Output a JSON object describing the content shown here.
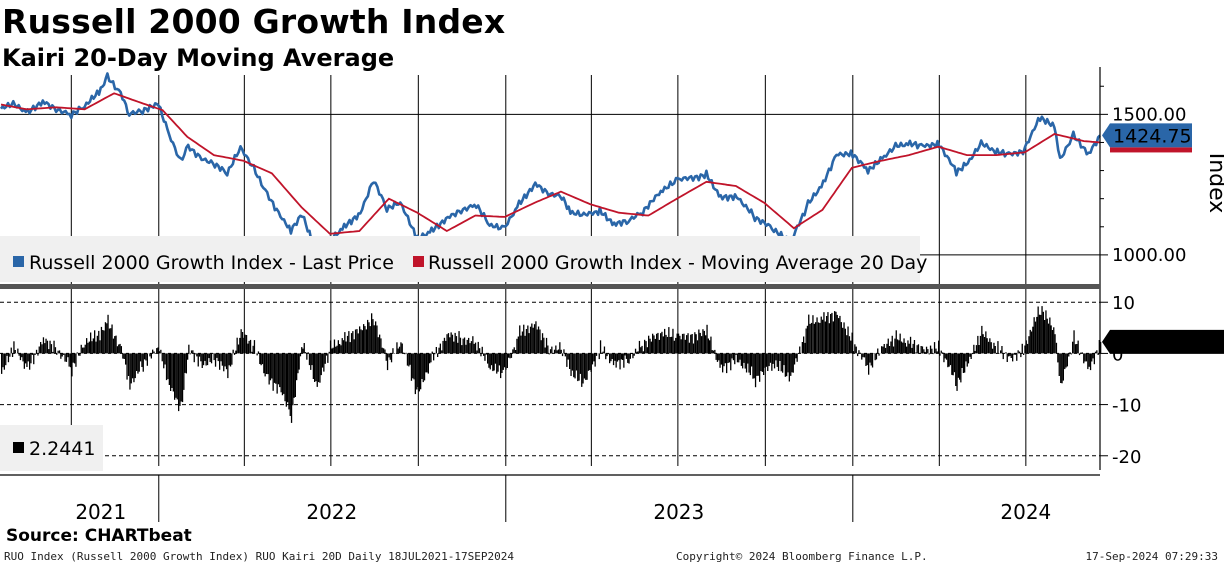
{
  "header": {
    "title": "Russell 2000 Growth Index",
    "subtitle": "Kairi 20-Day Moving Average"
  },
  "colors": {
    "last_price": "#2a66a8",
    "moving_average": "#c0142a",
    "kairi": "#000000",
    "price_tag": "#2a66a8"
  },
  "chart_data": [
    {
      "type": "line",
      "panel": "price",
      "ylabel": "Index",
      "ylim": [
        900,
        1640
      ],
      "yticks": [
        1000,
        1500
      ],
      "ytick_labels": [
        "1000.00",
        "1500.00"
      ],
      "x_range": [
        "2021-07-18",
        "2024-09-17"
      ],
      "last_value_label": "1424.75",
      "legend_placement": "bottom-left",
      "grid": true,
      "series": [
        {
          "name": "Russell 2000 Growth Index - Last Price",
          "key": "last_price",
          "points": [
            [
              "2021-07-19",
              1520
            ],
            [
              "2021-08-01",
              1535
            ],
            [
              "2021-08-16",
              1505
            ],
            [
              "2021-09-01",
              1548
            ],
            [
              "2021-09-15",
              1520
            ],
            [
              "2021-10-01",
              1500
            ],
            [
              "2021-10-15",
              1528
            ],
            [
              "2021-11-01",
              1585
            ],
            [
              "2021-11-08",
              1632
            ],
            [
              "2021-11-22",
              1575
            ],
            [
              "2021-12-01",
              1505
            ],
            [
              "2021-12-15",
              1515
            ],
            [
              "2022-01-01",
              1535
            ],
            [
              "2022-01-10",
              1440
            ],
            [
              "2022-01-24",
              1330
            ],
            [
              "2022-02-01",
              1385
            ],
            [
              "2022-02-15",
              1345
            ],
            [
              "2022-03-01",
              1325
            ],
            [
              "2022-03-14",
              1290
            ],
            [
              "2022-03-28",
              1380
            ],
            [
              "2022-04-11",
              1305
            ],
            [
              "2022-04-25",
              1215
            ],
            [
              "2022-05-09",
              1140
            ],
            [
              "2022-05-20",
              1090
            ],
            [
              "2022-06-01",
              1145
            ],
            [
              "2022-06-16",
              1000
            ],
            [
              "2022-06-30",
              1050
            ],
            [
              "2022-07-15",
              1100
            ],
            [
              "2022-08-01",
              1150
            ],
            [
              "2022-08-15",
              1270
            ],
            [
              "2022-08-29",
              1165
            ],
            [
              "2022-09-12",
              1185
            ],
            [
              "2022-09-30",
              1055
            ],
            [
              "2022-10-15",
              1085
            ],
            [
              "2022-11-01",
              1135
            ],
            [
              "2022-11-15",
              1160
            ],
            [
              "2022-12-01",
              1180
            ],
            [
              "2022-12-15",
              1105
            ],
            [
              "2022-12-30",
              1090
            ],
            [
              "2023-01-15",
              1180
            ],
            [
              "2023-02-01",
              1255
            ],
            [
              "2023-02-15",
              1220
            ],
            [
              "2023-03-01",
              1210
            ],
            [
              "2023-03-10",
              1150
            ],
            [
              "2023-03-24",
              1140
            ],
            [
              "2023-04-10",
              1155
            ],
            [
              "2023-04-25",
              1110
            ],
            [
              "2023-05-10",
              1125
            ],
            [
              "2023-05-25",
              1155
            ],
            [
              "2023-06-15",
              1230
            ],
            [
              "2023-07-01",
              1265
            ],
            [
              "2023-07-31",
              1285
            ],
            [
              "2023-08-15",
              1205
            ],
            [
              "2023-09-01",
              1210
            ],
            [
              "2023-09-20",
              1135
            ],
            [
              "2023-10-10",
              1090
            ],
            [
              "2023-10-27",
              1040
            ],
            [
              "2023-11-15",
              1180
            ],
            [
              "2023-12-01",
              1255
            ],
            [
              "2023-12-15",
              1360
            ],
            [
              "2024-01-01",
              1360
            ],
            [
              "2024-01-17",
              1300
            ],
            [
              "2024-02-01",
              1340
            ],
            [
              "2024-02-15",
              1385
            ],
            [
              "2024-03-01",
              1395
            ],
            [
              "2024-03-15",
              1390
            ],
            [
              "2024-04-01",
              1395
            ],
            [
              "2024-04-19",
              1295
            ],
            [
              "2024-05-01",
              1325
            ],
            [
              "2024-05-15",
              1395
            ],
            [
              "2024-06-01",
              1365
            ],
            [
              "2024-06-15",
              1360
            ],
            [
              "2024-06-28",
              1370
            ],
            [
              "2024-07-16",
              1490
            ],
            [
              "2024-07-31",
              1455
            ],
            [
              "2024-08-06",
              1335
            ],
            [
              "2024-08-20",
              1425
            ],
            [
              "2024-09-05",
              1360
            ],
            [
              "2024-09-17",
              1425
            ]
          ]
        },
        {
          "name": "Russell 2000 Growth Index - Moving Average 20 Day",
          "key": "moving_average",
          "points": [
            [
              "2021-07-19",
              1535
            ],
            [
              "2021-08-15",
              1518
            ],
            [
              "2021-09-15",
              1525
            ],
            [
              "2021-10-15",
              1518
            ],
            [
              "2021-11-15",
              1575
            ],
            [
              "2021-12-10",
              1545
            ],
            [
              "2022-01-05",
              1515
            ],
            [
              "2022-01-31",
              1420
            ],
            [
              "2022-02-28",
              1355
            ],
            [
              "2022-03-31",
              1335
            ],
            [
              "2022-04-30",
              1290
            ],
            [
              "2022-05-31",
              1170
            ],
            [
              "2022-06-30",
              1075
            ],
            [
              "2022-07-31",
              1085
            ],
            [
              "2022-08-31",
              1200
            ],
            [
              "2022-09-30",
              1150
            ],
            [
              "2022-10-31",
              1085
            ],
            [
              "2022-11-30",
              1140
            ],
            [
              "2022-12-31",
              1135
            ],
            [
              "2023-01-31",
              1185
            ],
            [
              "2023-02-28",
              1225
            ],
            [
              "2023-03-31",
              1180
            ],
            [
              "2023-04-30",
              1150
            ],
            [
              "2023-05-31",
              1140
            ],
            [
              "2023-06-30",
              1200
            ],
            [
              "2023-07-31",
              1260
            ],
            [
              "2023-08-31",
              1245
            ],
            [
              "2023-09-30",
              1185
            ],
            [
              "2023-10-31",
              1095
            ],
            [
              "2023-11-30",
              1160
            ],
            [
              "2023-12-31",
              1310
            ],
            [
              "2024-01-31",
              1335
            ],
            [
              "2024-02-29",
              1355
            ],
            [
              "2024-03-31",
              1385
            ],
            [
              "2024-04-30",
              1355
            ],
            [
              "2024-05-31",
              1355
            ],
            [
              "2024-06-30",
              1365
            ],
            [
              "2024-07-31",
              1430
            ],
            [
              "2024-08-31",
              1405
            ],
            [
              "2024-09-17",
              1400
            ]
          ]
        }
      ]
    },
    {
      "type": "bar",
      "panel": "kairi",
      "ylim": [
        -22,
        12
      ],
      "yticks": [
        10,
        0,
        -10,
        -20
      ],
      "ytick_labels": [
        "10",
        "0",
        "-10",
        "-20"
      ],
      "last_value_label": "2.2441",
      "legend_placement": "bottom-left",
      "grid": true,
      "series": [
        {
          "name": "2.2441",
          "key": "kairi",
          "points": [
            [
              "2021-07-19",
              -4
            ],
            [
              "2021-08-01",
              1
            ],
            [
              "2021-08-16",
              -3
            ],
            [
              "2021-09-01",
              3
            ],
            [
              "2021-09-15",
              1
            ],
            [
              "2021-10-01",
              -3
            ],
            [
              "2021-10-15",
              2
            ],
            [
              "2021-11-01",
              4
            ],
            [
              "2021-11-08",
              6
            ],
            [
              "2021-11-22",
              1
            ],
            [
              "2021-12-01",
              -6
            ],
            [
              "2021-12-15",
              -2
            ],
            [
              "2022-01-01",
              1
            ],
            [
              "2022-01-10",
              -6
            ],
            [
              "2022-01-24",
              -11
            ],
            [
              "2022-02-01",
              1
            ],
            [
              "2022-02-15",
              -2
            ],
            [
              "2022-03-01",
              -1
            ],
            [
              "2022-03-14",
              -4
            ],
            [
              "2022-03-28",
              4
            ],
            [
              "2022-04-11",
              1
            ],
            [
              "2022-04-25",
              -5
            ],
            [
              "2022-05-09",
              -7
            ],
            [
              "2022-05-20",
              -12
            ],
            [
              "2022-06-01",
              2
            ],
            [
              "2022-06-16",
              -7
            ],
            [
              "2022-06-30",
              1
            ],
            [
              "2022-07-15",
              3
            ],
            [
              "2022-08-01",
              5
            ],
            [
              "2022-08-15",
              7
            ],
            [
              "2022-08-29",
              -2
            ],
            [
              "2022-09-12",
              2
            ],
            [
              "2022-09-30",
              -8
            ],
            [
              "2022-10-15",
              -1
            ],
            [
              "2022-11-01",
              4
            ],
            [
              "2022-11-15",
              3
            ],
            [
              "2022-12-01",
              2
            ],
            [
              "2022-12-15",
              -3
            ],
            [
              "2022-12-30",
              -4
            ],
            [
              "2023-01-15",
              4
            ],
            [
              "2023-02-01",
              6
            ],
            [
              "2023-02-15",
              1
            ],
            [
              "2023-03-01",
              1
            ],
            [
              "2023-03-10",
              -4
            ],
            [
              "2023-03-24",
              -6
            ],
            [
              "2023-04-10",
              1
            ],
            [
              "2023-04-25",
              -2
            ],
            [
              "2023-05-10",
              -1
            ],
            [
              "2023-05-25",
              2
            ],
            [
              "2023-06-15",
              4
            ],
            [
              "2023-07-01",
              3
            ],
            [
              "2023-07-31",
              4
            ],
            [
              "2023-08-15",
              -3
            ],
            [
              "2023-09-01",
              -1
            ],
            [
              "2023-09-20",
              -5
            ],
            [
              "2023-10-10",
              -2
            ],
            [
              "2023-10-27",
              -5
            ],
            [
              "2023-11-15",
              6
            ],
            [
              "2023-12-01",
              7
            ],
            [
              "2023-12-15",
              8
            ],
            [
              "2024-01-01",
              2
            ],
            [
              "2024-01-17",
              -3
            ],
            [
              "2024-02-01",
              1
            ],
            [
              "2024-02-15",
              3
            ],
            [
              "2024-03-01",
              2
            ],
            [
              "2024-03-15",
              1
            ],
            [
              "2024-04-01",
              1
            ],
            [
              "2024-04-19",
              -6
            ],
            [
              "2024-05-01",
              -2
            ],
            [
              "2024-05-15",
              4
            ],
            [
              "2024-06-01",
              1
            ],
            [
              "2024-06-15",
              -1
            ],
            [
              "2024-06-28",
              1
            ],
            [
              "2024-07-16",
              9
            ],
            [
              "2024-07-31",
              4
            ],
            [
              "2024-08-06",
              -7
            ],
            [
              "2024-08-20",
              3
            ],
            [
              "2024-09-05",
              -3
            ],
            [
              "2024-09-17",
              2.2441
            ]
          ]
        }
      ]
    }
  ],
  "x_axis": {
    "ticks": [
      {
        "label": "2021",
        "date": "2021-11-01"
      },
      {
        "label": "2022",
        "date": "2022-07-02"
      },
      {
        "label": "2023",
        "date": "2023-07-02"
      },
      {
        "label": "2024",
        "date": "2024-07-01"
      }
    ]
  },
  "footer": {
    "source": "Source: CHARTbeat",
    "left": "RUO Index (Russell 2000 Growth Index) RUO Kairi 20D  Daily 18JUL2021-17SEP2024",
    "center": "Copyright© 2024 Bloomberg Finance L.P.",
    "right": "17-Sep-2024 07:29:33"
  }
}
